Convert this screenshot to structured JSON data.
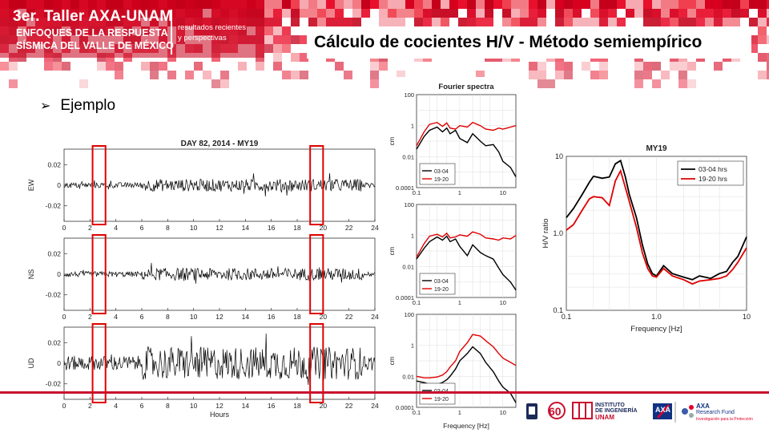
{
  "brand": {
    "title": "3er. Taller AXA-UNAM",
    "subtitle_line1": "ENFOQUES DE LA RESPUESTA",
    "subtitle_line2": "SÍSMICA DEL VALLE DE MÉXICO",
    "tagline_line1": "resultados recientes",
    "tagline_line2": "y perspectivas"
  },
  "slide": {
    "title": "Cálculo de cocientes H/V - Método semiempírico",
    "bullet": "Ejemplo"
  },
  "footer": {
    "inst_line1": "INSTITUTO",
    "inst_line2": "DE INGENIERÍA",
    "inst_line3": "UNAM",
    "sixty": "60",
    "axa": "AXA",
    "axa_fund1": "AXA",
    "axa_fund2": "Research Fund",
    "axa_fund3": "Investigación para la Protección"
  },
  "chart_data": [
    {
      "type": "line",
      "title": "DAY 82, 2014 - MY19",
      "xlabel": "Hours",
      "x_ticks": [
        "0",
        "2",
        "4",
        "6",
        "8",
        "10",
        "12",
        "14",
        "16",
        "18",
        "20",
        "22",
        "24"
      ],
      "xlim": [
        0,
        24
      ],
      "panels": [
        {
          "ylabel": "EW",
          "y_ticks": [
            "0.02",
            "0",
            "-0.02"
          ],
          "ylim": [
            -0.035,
            0.035
          ]
        },
        {
          "ylabel": "NS",
          "y_ticks": [
            "0.02",
            "0",
            "-0.02"
          ],
          "ylim": [
            -0.035,
            0.035
          ]
        },
        {
          "ylabel": "UD",
          "y_ticks": [
            "0.02",
            "0",
            "-0.02"
          ],
          "ylim": [
            -0.035,
            0.035
          ]
        }
      ],
      "highlight_windows_hours": [
        [
          2.2,
          3.2
        ],
        [
          19.0,
          20.0
        ]
      ],
      "highlight_color": "#e00000",
      "trace_color": "#000000"
    },
    {
      "type": "line",
      "title": "Fourier spectra",
      "xlabel": "Frequency [Hz]",
      "ylabel": "cm",
      "x_scale": "log",
      "y_scale": "log",
      "x_ticks": [
        "0.1",
        "1",
        "10"
      ],
      "y_ticks": [
        "100",
        "1",
        "0.01",
        "0.0001"
      ],
      "xlim": [
        0.1,
        20
      ],
      "ylim": [
        0.0001,
        100
      ],
      "legend_position": "bottom-left",
      "series_names": [
        "03-04",
        "19-20"
      ],
      "series_colors": [
        "#000000",
        "#e00000"
      ],
      "panels": [
        {
          "x": [
            0.1,
            0.15,
            0.2,
            0.3,
            0.4,
            0.5,
            0.6,
            0.8,
            1,
            1.5,
            2,
            3,
            4,
            6,
            8,
            10,
            15,
            20
          ],
          "series": [
            {
              "values": [
                0.03,
                0.2,
                0.5,
                0.8,
                0.4,
                0.7,
                0.3,
                0.5,
                0.15,
                0.08,
                0.3,
                0.1,
                0.05,
                0.06,
                0.02,
                0.005,
                0.002,
                0.0005
              ]
            },
            {
              "values": [
                0.05,
                0.4,
                1.2,
                1.6,
                0.9,
                1.5,
                0.7,
                0.6,
                1.0,
                0.8,
                1.6,
                1.0,
                0.6,
                0.5,
                0.7,
                0.6,
                0.8,
                1.0
              ]
            }
          ]
        },
        {
          "x": [
            0.1,
            0.15,
            0.2,
            0.3,
            0.4,
            0.5,
            0.6,
            0.8,
            1,
            1.5,
            2,
            3,
            4,
            6,
            8,
            10,
            15,
            20
          ],
          "series": [
            {
              "values": [
                0.03,
                0.15,
                0.4,
                0.8,
                0.5,
                0.9,
                0.4,
                0.6,
                0.2,
                0.05,
                0.25,
                0.08,
                0.05,
                0.03,
                0.008,
                0.003,
                0.001,
                0.0003
              ]
            },
            {
              "values": [
                0.04,
                0.3,
                0.9,
                1.2,
                0.8,
                1.4,
                0.7,
                0.8,
                1.1,
                0.9,
                1.7,
                1.2,
                0.7,
                0.6,
                0.5,
                0.7,
                0.6,
                1.0
              ]
            }
          ]
        },
        {
          "x": [
            0.1,
            0.15,
            0.2,
            0.3,
            0.4,
            0.5,
            0.6,
            0.8,
            1,
            1.5,
            2,
            3,
            4,
            6,
            8,
            10,
            15,
            20
          ],
          "series": [
            {
              "values": [
                0.005,
                0.004,
                0.003,
                0.003,
                0.004,
                0.006,
                0.01,
                0.03,
                0.1,
                0.3,
                0.8,
                0.3,
                0.08,
                0.02,
                0.005,
                0.002,
                0.0008,
                0.0002
              ]
            },
            {
              "values": [
                0.01,
                0.008,
                0.008,
                0.009,
                0.012,
                0.02,
                0.04,
                0.1,
                0.4,
                1.5,
                5,
                4,
                2,
                0.8,
                0.3,
                0.15,
                0.08,
                0.05
              ]
            }
          ]
        }
      ]
    },
    {
      "type": "line",
      "title": "MY19",
      "xlabel": "Frequency [Hz]",
      "ylabel": "H/V ratio",
      "x_scale": "log",
      "y_scale": "log",
      "x_ticks": [
        "0.1",
        "1.0",
        "10"
      ],
      "y_ticks": [
        "10",
        "1.0",
        "0.1"
      ],
      "xlim": [
        0.1,
        10
      ],
      "ylim": [
        0.1,
        10
      ],
      "legend_position": "top-right",
      "x": [
        0.1,
        0.12,
        0.15,
        0.18,
        0.2,
        0.25,
        0.3,
        0.35,
        0.4,
        0.45,
        0.5,
        0.6,
        0.7,
        0.8,
        0.9,
        1.0,
        1.2,
        1.5,
        2,
        2.5,
        3,
        4,
        5,
        6,
        7,
        8,
        10
      ],
      "series": [
        {
          "name": "03-04 hrs",
          "color": "#000000",
          "values": [
            1.6,
            2.1,
            3.2,
            4.6,
            5.5,
            5.2,
            5.4,
            8.0,
            8.8,
            5.5,
            3.2,
            1.6,
            0.7,
            0.4,
            0.3,
            0.28,
            0.38,
            0.3,
            0.27,
            0.25,
            0.28,
            0.26,
            0.3,
            0.32,
            0.42,
            0.5,
            0.9
          ]
        },
        {
          "name": "19-20 hrs",
          "color": "#e00000",
          "values": [
            1.1,
            1.3,
            2.0,
            2.8,
            3.0,
            2.9,
            2.3,
            4.8,
            6.5,
            4.0,
            2.6,
            1.2,
            0.55,
            0.35,
            0.28,
            0.27,
            0.35,
            0.28,
            0.25,
            0.22,
            0.24,
            0.25,
            0.26,
            0.28,
            0.34,
            0.42,
            0.65
          ]
        }
      ]
    }
  ]
}
